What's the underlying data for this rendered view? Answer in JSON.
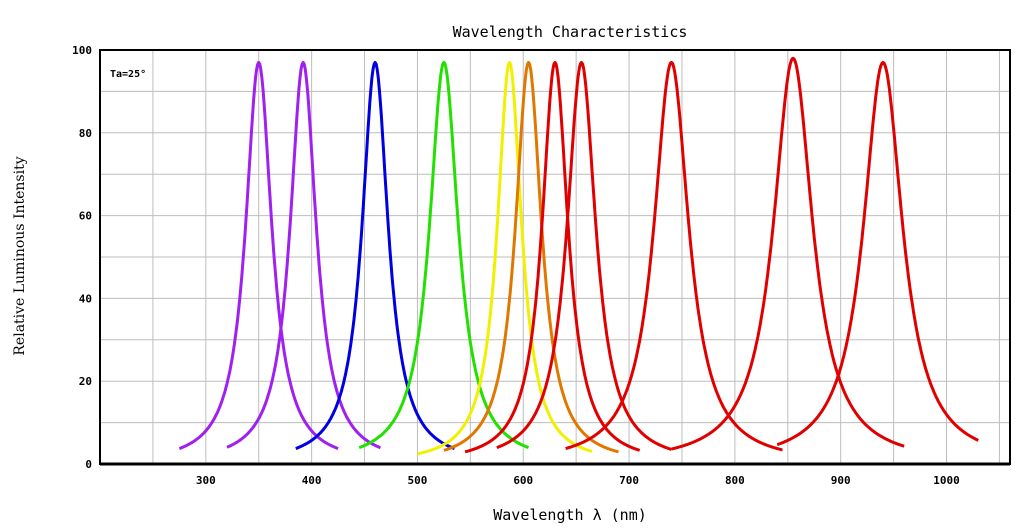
{
  "chart_data": {
    "type": "line",
    "title": "Wavelength Characteristics",
    "xlabel": "Wavelength λ (nm)",
    "ylabel": "Relative Luminous Intensity",
    "annotation": "Ta=25°",
    "xlim": [
      200,
      1060
    ],
    "ylim": [
      0,
      100
    ],
    "x_ticks": [
      300,
      400,
      500,
      600,
      700,
      800,
      900,
      1000
    ],
    "y_ticks": [
      0,
      20,
      40,
      60,
      80,
      100
    ],
    "grid": true,
    "series": [
      {
        "peak": 350,
        "fwhm": 30,
        "max": 97,
        "range": [
          275,
          425
        ],
        "color": "#a020f0"
      },
      {
        "peak": 392,
        "fwhm": 30,
        "max": 97,
        "range": [
          320,
          465
        ],
        "color": "#a020f0"
      },
      {
        "peak": 460,
        "fwhm": 30,
        "max": 97,
        "range": [
          385,
          535
        ],
        "color": "#0000e0"
      },
      {
        "peak": 525,
        "fwhm": 33,
        "max": 97,
        "range": [
          445,
          605
        ],
        "color": "#22e000"
      },
      {
        "peak": 587,
        "fwhm": 28,
        "max": 97,
        "range": [
          500,
          665
        ],
        "color": "#f0f000"
      },
      {
        "peak": 605,
        "fwhm": 30,
        "max": 97,
        "range": [
          525,
          690
        ],
        "color": "#e07800"
      },
      {
        "peak": 630,
        "fwhm": 30,
        "max": 97,
        "range": [
          545,
          710
        ],
        "color": "#e00000"
      },
      {
        "peak": 655,
        "fwhm": 33,
        "max": 97,
        "range": [
          575,
          740
        ],
        "color": "#e00000"
      },
      {
        "peak": 740,
        "fwhm": 40,
        "max": 97,
        "range": [
          640,
          845
        ],
        "color": "#e00000"
      },
      {
        "peak": 855,
        "fwhm": 45,
        "max": 98,
        "range": [
          740,
          960
        ],
        "color": "#e00000"
      },
      {
        "peak": 940,
        "fwhm": 45,
        "max": 97,
        "range": [
          840,
          1030
        ],
        "color": "#e00000"
      }
    ]
  }
}
